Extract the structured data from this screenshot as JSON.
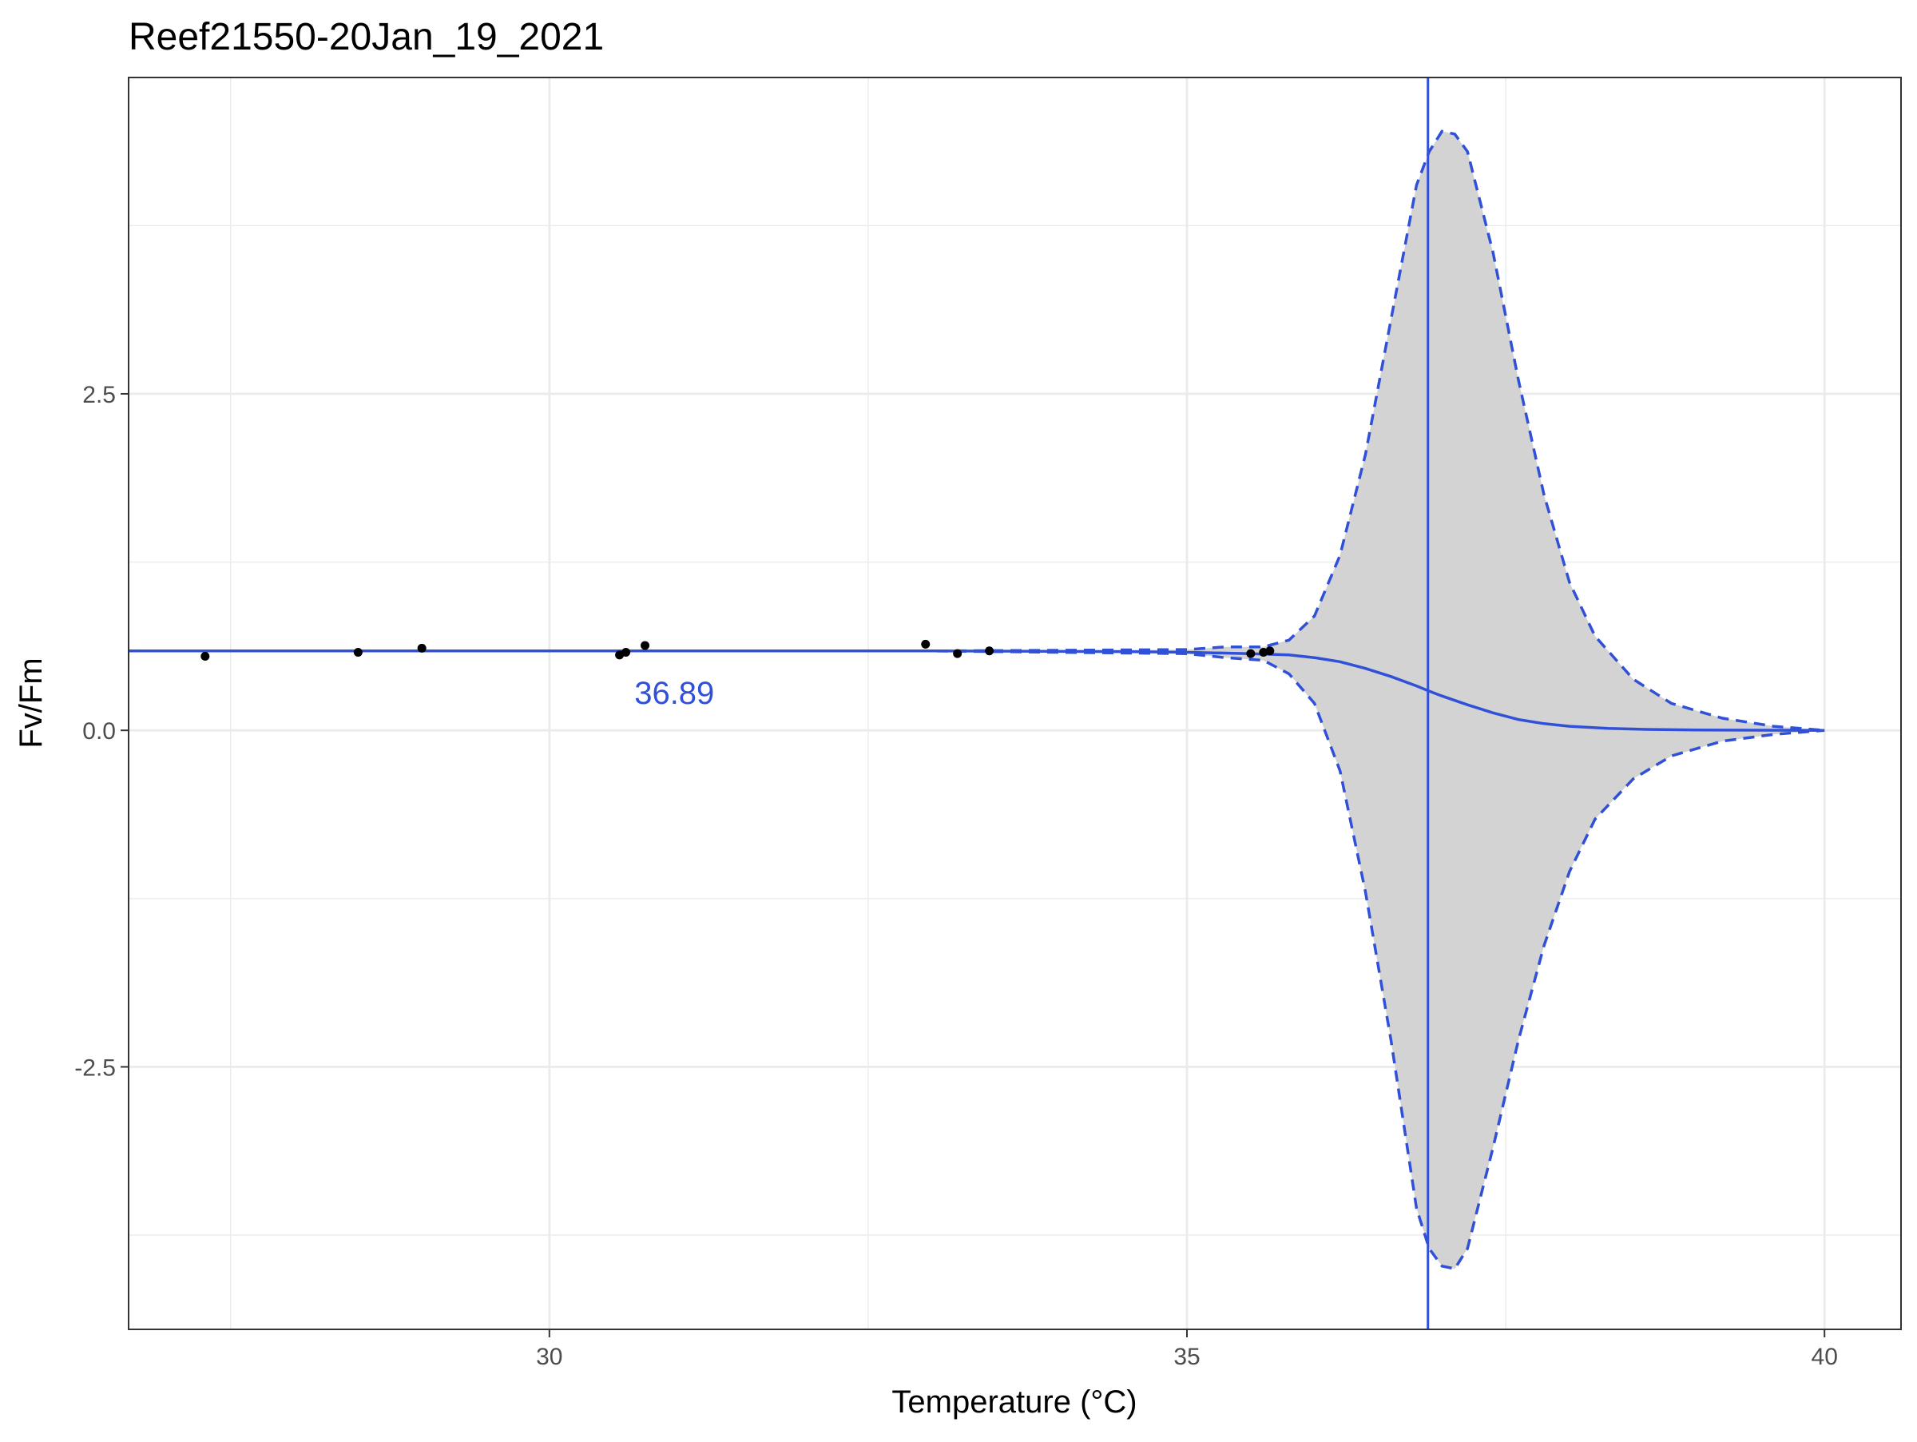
{
  "chart_data": {
    "type": "line",
    "title": "Reef21550-20Jan_19_2021",
    "xlabel": "Temperature (°C)",
    "ylabel": "Fv/Fm",
    "xlim": [
      26.7,
      40.6
    ],
    "ylim": [
      -4.45,
      4.85
    ],
    "x_ticks": [
      30,
      35,
      40
    ],
    "x_tick_labels": [
      "30",
      "35",
      "40"
    ],
    "y_ticks": [
      -2.5,
      0,
      2.5
    ],
    "y_tick_labels": [
      "-2.5",
      "0.0",
      "2.5"
    ],
    "grid": true,
    "legend": "none",
    "colors": {
      "fit": "#3050d8",
      "band": "#d3d3d3",
      "points": "#000000",
      "grid": "#ebebeb"
    },
    "points": {
      "x": [
        27.3,
        28.5,
        29.0,
        30.55,
        30.6,
        30.75,
        32.95,
        33.2,
        33.45,
        35.5,
        35.6,
        35.65
      ],
      "y": [
        0.55,
        0.58,
        0.61,
        0.56,
        0.58,
        0.63,
        0.64,
        0.57,
        0.59,
        0.57,
        0.58,
        0.59
      ]
    },
    "series": [
      {
        "role": "fit",
        "style": "solid",
        "x": [
          26.5,
          30,
          33,
          34.5,
          35,
          35.5,
          35.8,
          36,
          36.2,
          36.4,
          36.6,
          36.8,
          36.89,
          37,
          37.2,
          37.4,
          37.6,
          37.8,
          38,
          38.3,
          38.6,
          39,
          39.5,
          40
        ],
        "y": [
          0.59,
          0.59,
          0.59,
          0.585,
          0.58,
          0.57,
          0.56,
          0.54,
          0.51,
          0.46,
          0.4,
          0.33,
          0.295,
          0.255,
          0.19,
          0.13,
          0.08,
          0.05,
          0.03,
          0.015,
          0.007,
          0.003,
          0.001,
          0.0
        ]
      },
      {
        "role": "upper-ci",
        "style": "dashed",
        "x": [
          26.5,
          30,
          33,
          35,
          35.3,
          35.6,
          35.8,
          36,
          36.2,
          36.4,
          36.6,
          36.8,
          36.9,
          37.0,
          37.1,
          37.2,
          37.4,
          37.6,
          37.8,
          38,
          38.2,
          38.5,
          38.8,
          39.2,
          39.6,
          40
        ],
        "y": [
          0.59,
          0.59,
          0.59,
          0.6,
          0.62,
          0.62,
          0.67,
          0.85,
          1.3,
          2.05,
          3.05,
          4.05,
          4.3,
          4.45,
          4.43,
          4.3,
          3.55,
          2.6,
          1.75,
          1.1,
          0.7,
          0.38,
          0.2,
          0.09,
          0.03,
          0.0
        ]
      },
      {
        "role": "lower-ci",
        "style": "dashed",
        "x": [
          26.5,
          30,
          33,
          35,
          35.3,
          35.6,
          35.8,
          36,
          36.2,
          36.4,
          36.6,
          36.8,
          36.9,
          37.0,
          37.1,
          37.2,
          37.4,
          37.6,
          37.8,
          38,
          38.2,
          38.5,
          38.8,
          39.2,
          39.6,
          40
        ],
        "y": [
          0.59,
          0.59,
          0.59,
          0.57,
          0.54,
          0.52,
          0.42,
          0.2,
          -0.3,
          -1.2,
          -2.3,
          -3.55,
          -3.85,
          -3.98,
          -4.0,
          -3.85,
          -3.1,
          -2.3,
          -1.6,
          -1.05,
          -0.66,
          -0.36,
          -0.19,
          -0.08,
          -0.03,
          0.0
        ]
      }
    ],
    "vline": {
      "x": 36.89
    },
    "annotation": {
      "text": "36.89",
      "x": 30.98,
      "y": 0.28
    }
  }
}
